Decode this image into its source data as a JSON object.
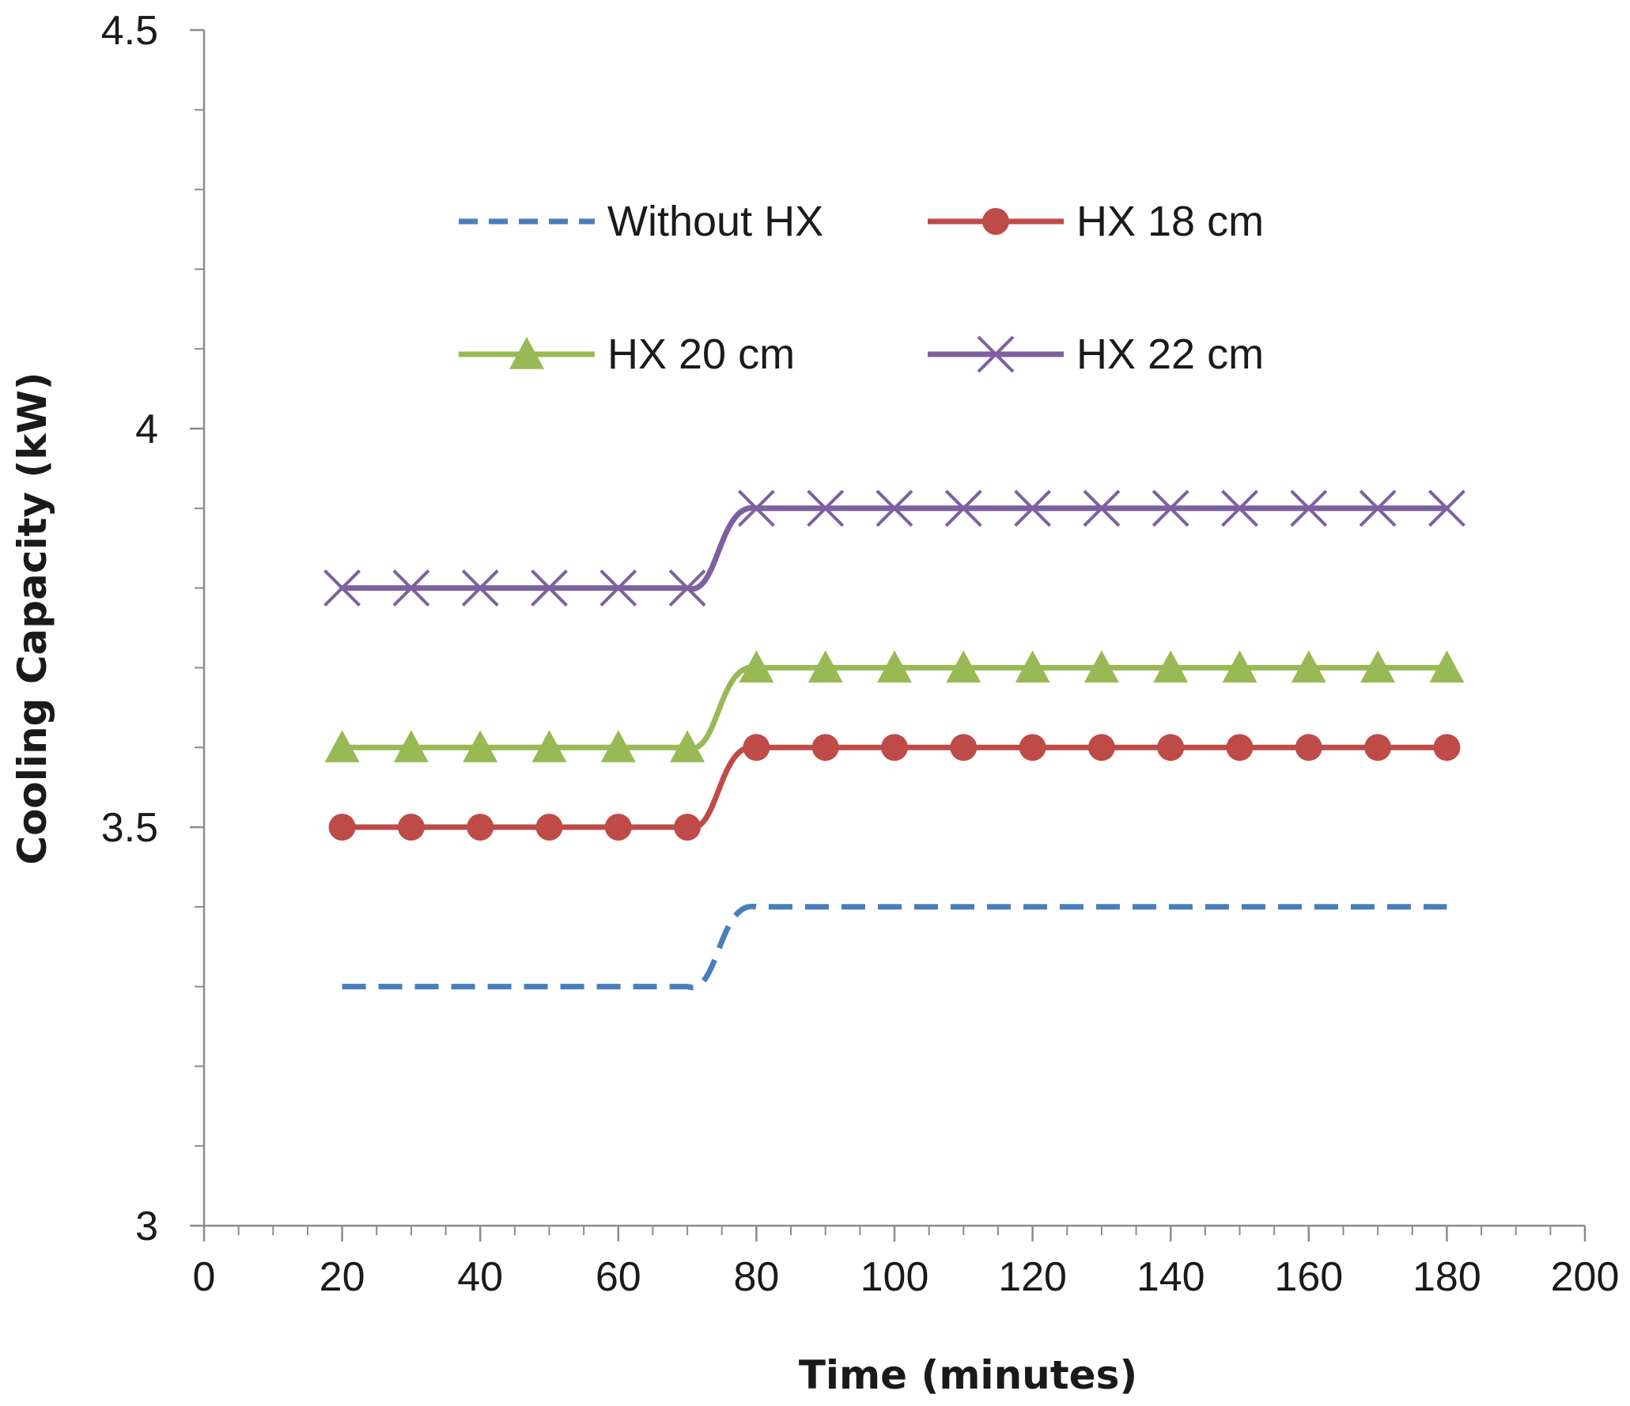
{
  "chart_data": {
    "type": "line",
    "xlabel": "Time (minutes)",
    "ylabel": "Cooling Capacity (kW)",
    "xlim": [
      0,
      200
    ],
    "ylim": [
      3,
      4.5
    ],
    "x_ticks": [
      0,
      20,
      40,
      60,
      80,
      100,
      120,
      140,
      160,
      180,
      200
    ],
    "x_tick_labels": [
      "0",
      "20",
      "40",
      "60",
      "80",
      "100",
      "120",
      "140",
      "160",
      "180",
      "200"
    ],
    "y_ticks": [
      3,
      3.5,
      4,
      4.5
    ],
    "y_tick_labels": [
      "3",
      "3.5",
      "4",
      "4.5"
    ],
    "y_minor_step": 0.1,
    "x_minor_step": 5,
    "grid": false,
    "legend_position": "top-center",
    "x": [
      20,
      30,
      40,
      50,
      60,
      70,
      80,
      90,
      100,
      110,
      120,
      130,
      140,
      150,
      160,
      170,
      180
    ],
    "series": [
      {
        "name": "Without HX",
        "color": "#4a7ebb",
        "marker": "none",
        "dashed": true,
        "values": [
          3.3,
          3.3,
          3.3,
          3.3,
          3.3,
          3.3,
          3.4,
          3.4,
          3.4,
          3.4,
          3.4,
          3.4,
          3.4,
          3.4,
          3.4,
          3.4,
          3.4
        ]
      },
      {
        "name": "HX 18 cm",
        "color": "#be4b48",
        "marker": "circle",
        "dashed": false,
        "values": [
          3.5,
          3.5,
          3.5,
          3.5,
          3.5,
          3.5,
          3.6,
          3.6,
          3.6,
          3.6,
          3.6,
          3.6,
          3.6,
          3.6,
          3.6,
          3.6,
          3.6
        ]
      },
      {
        "name": "HX 20 cm",
        "color": "#98b954",
        "marker": "triangle",
        "dashed": false,
        "values": [
          3.6,
          3.6,
          3.6,
          3.6,
          3.6,
          3.6,
          3.7,
          3.7,
          3.7,
          3.7,
          3.7,
          3.7,
          3.7,
          3.7,
          3.7,
          3.7,
          3.7
        ]
      },
      {
        "name": "HX 22 cm",
        "color": "#7d60a0",
        "marker": "x",
        "dashed": false,
        "values": [
          3.8,
          3.8,
          3.8,
          3.8,
          3.8,
          3.8,
          3.9,
          3.9,
          3.9,
          3.9,
          3.9,
          3.9,
          3.9,
          3.9,
          3.9,
          3.9,
          3.9
        ]
      }
    ]
  }
}
